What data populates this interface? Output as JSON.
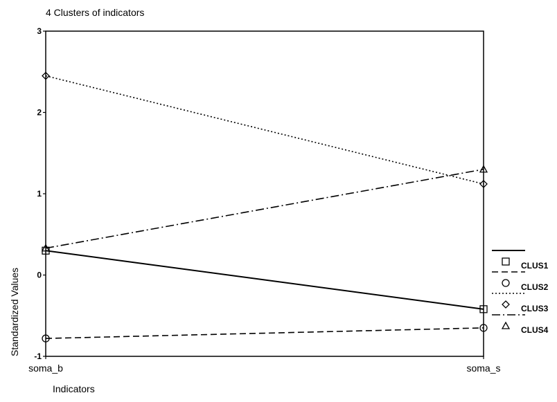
{
  "chart_data": {
    "type": "line",
    "title": "4 Clusters of indicators",
    "xlabel": "Indicators",
    "ylabel": "Standardized Values",
    "categories": [
      "soma_b",
      "soma_s"
    ],
    "ylim": [
      -1,
      3
    ],
    "yticks": [
      3,
      2,
      1,
      0,
      -1
    ],
    "grid": false,
    "legend_position": "right",
    "series": [
      {
        "name": "CLUS1",
        "values": [
          0.3,
          -0.42
        ],
        "line_style": "solid",
        "marker": "square"
      },
      {
        "name": "CLUS2",
        "values": [
          -0.78,
          -0.65
        ],
        "line_style": "dashed",
        "marker": "circle"
      },
      {
        "name": "CLUS3",
        "values": [
          2.45,
          1.12
        ],
        "line_style": "dotted",
        "marker": "diamond"
      },
      {
        "name": "CLUS4",
        "values": [
          0.33,
          1.3
        ],
        "line_style": "dash-dot",
        "marker": "triangle"
      }
    ]
  }
}
